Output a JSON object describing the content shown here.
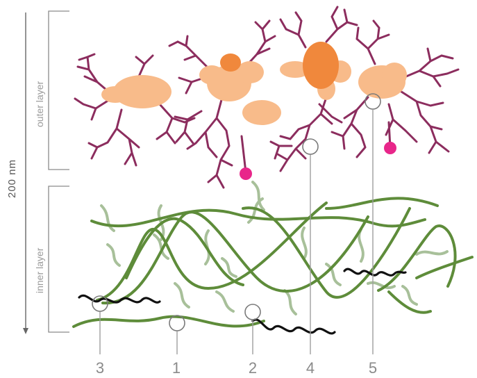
{
  "scale_bar": {
    "label": "200 nm"
  },
  "layers": {
    "outer": {
      "label": "outer layer"
    },
    "inner": {
      "label": "inner layer"
    }
  },
  "markers": [
    {
      "label": "3"
    },
    {
      "label": "1"
    },
    {
      "label": "2"
    },
    {
      "label": "4"
    },
    {
      "label": "5"
    }
  ],
  "colors": {
    "branch": "#8c2d5e",
    "blob_light": "#f8bb8a",
    "blob_dark": "#f0883c",
    "dot": "#e8268a",
    "fiber_dark": "#5e8c3a",
    "fiber_light": "#a8c09a",
    "chain": "#111111",
    "guide": "#9e9e9e"
  }
}
